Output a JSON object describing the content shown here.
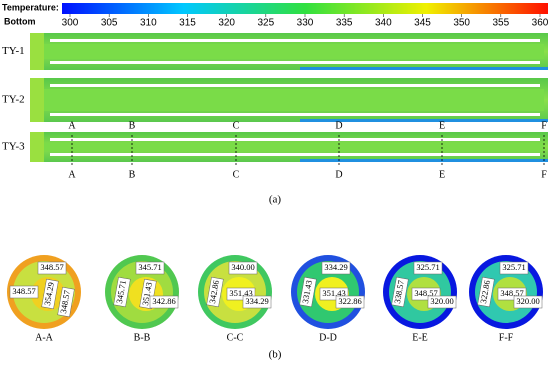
{
  "colorbar": {
    "title": "Temperature:",
    "label": "Bottom",
    "ticks": [
      300,
      305,
      310,
      315,
      320,
      325,
      330,
      335,
      340,
      345,
      350,
      355,
      360
    ]
  },
  "panel_a": {
    "pipes": [
      "TY-1",
      "TY-2",
      "TY-3"
    ],
    "sections": [
      "A",
      "B",
      "C",
      "D",
      "E",
      "F"
    ],
    "caption": "(a)"
  },
  "panel_b": {
    "caption": "(b)",
    "sections": [
      {
        "label": "A-A",
        "values": [
          "348.57",
          "348.57",
          "354.29",
          "348.57"
        ]
      },
      {
        "label": "B-B",
        "values": [
          "345.71",
          "345.71",
          "351.43",
          "342.86"
        ]
      },
      {
        "label": "C-C",
        "values": [
          "340.00",
          "342.86",
          "351.43",
          "334.29"
        ]
      },
      {
        "label": "D-D",
        "values": [
          "334.29",
          "331.43",
          "351.43",
          "322.86"
        ]
      },
      {
        "label": "E-E",
        "values": [
          "325.71",
          "338.57",
          "348.57",
          "320.00"
        ]
      },
      {
        "label": "F-F",
        "values": [
          "325.71",
          "322.86",
          "348.57",
          "320.00"
        ]
      }
    ]
  }
}
